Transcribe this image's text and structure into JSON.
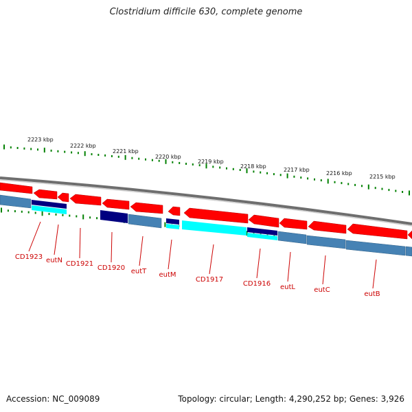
{
  "title": "Clostridium difficile 630, complete genome",
  "accession": "Accession: NC_009089",
  "summary": "Topology: circular; Length: 4,290,252 bp; Genes: 3,926",
  "colors": {
    "forward_gene": "#ff0000",
    "reverse_gene": "#4682b4",
    "dark_gene": "#000080",
    "cyan_gene": "#00ffff",
    "backbone": "#808080",
    "ticks": "#008000",
    "label": "#cc0000"
  },
  "kbp_labels": [
    "2223 kbp",
    "2222 kbp",
    "2221 kbp",
    "2220 kbp",
    "2219 kbp",
    "2218 kbp",
    "2217 kbp",
    "2216 kbp",
    "2215 kbp"
  ],
  "gene_labels": [
    "CD1923",
    "eutN",
    "CD1921",
    "CD1920",
    "eutT",
    "eutM",
    "CD1917",
    "CD1916",
    "eutL",
    "eutC",
    "eutB"
  ]
}
